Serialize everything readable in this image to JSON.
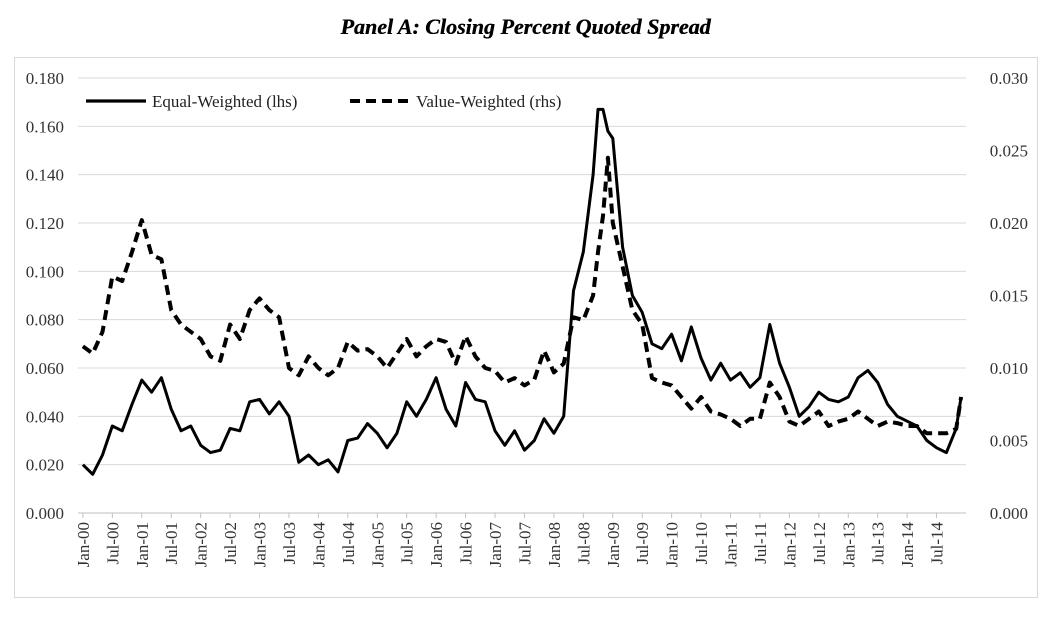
{
  "title": "Panel A: Closing Percent Quoted Spread",
  "chart_data": {
    "type": "line",
    "title": "Panel A: Closing Percent Quoted Spread",
    "xlabel": "",
    "ylabel_left": "",
    "ylabel_right": "",
    "x_tick_labels": [
      "Jan-00",
      "Jul-00",
      "Jan-01",
      "Jul-01",
      "Jan-02",
      "Jul-02",
      "Jan-03",
      "Jul-03",
      "Jan-04",
      "Jul-04",
      "Jan-05",
      "Jul-05",
      "Jan-06",
      "Jul-06",
      "Jan-07",
      "Jul-07",
      "Jan-08",
      "Jul-08",
      "Jan-09",
      "Jul-09",
      "Jan-10",
      "Jul-10",
      "Jan-11",
      "Jul-11",
      "Jan-12",
      "Jul-12",
      "Jan-13",
      "Jul-13",
      "Jan-14",
      "Jul-14"
    ],
    "y_left": {
      "ylim": [
        0,
        0.18
      ],
      "ticks": [
        "0.000",
        "0.020",
        "0.040",
        "0.060",
        "0.080",
        "0.100",
        "0.120",
        "0.140",
        "0.160",
        "0.180"
      ]
    },
    "y_right": {
      "ylim": [
        0,
        0.03
      ],
      "ticks": [
        "0.000",
        "0.005",
        "0.010",
        "0.015",
        "0.020",
        "0.025",
        "0.030"
      ]
    },
    "grid": "horizontal",
    "legend": "top-left",
    "series": [
      {
        "name": "Equal-Weighted (lhs)",
        "axis": "left",
        "style": "solid",
        "x": [
          "Jan-00",
          "Mar-00",
          "May-00",
          "Jul-00",
          "Sep-00",
          "Nov-00",
          "Jan-01",
          "Mar-01",
          "May-01",
          "Jul-01",
          "Sep-01",
          "Nov-01",
          "Jan-02",
          "Mar-02",
          "May-02",
          "Jul-02",
          "Sep-02",
          "Nov-02",
          "Jan-03",
          "Mar-03",
          "May-03",
          "Jul-03",
          "Sep-03",
          "Nov-03",
          "Jan-04",
          "Mar-04",
          "May-04",
          "Jul-04",
          "Sep-04",
          "Nov-04",
          "Jan-05",
          "Mar-05",
          "May-05",
          "Jul-05",
          "Sep-05",
          "Nov-05",
          "Jan-06",
          "Mar-06",
          "May-06",
          "Jul-06",
          "Sep-06",
          "Nov-06",
          "Jan-07",
          "Mar-07",
          "May-07",
          "Jul-07",
          "Sep-07",
          "Nov-07",
          "Jan-08",
          "Mar-08",
          "May-08",
          "Jul-08",
          "Sep-08",
          "Oct-08",
          "Nov-08",
          "Dec-08",
          "Jan-09",
          "Mar-09",
          "May-09",
          "Jul-09",
          "Sep-09",
          "Nov-09",
          "Jan-10",
          "Mar-10",
          "May-10",
          "Jul-10",
          "Sep-10",
          "Nov-10",
          "Jan-11",
          "Mar-11",
          "May-11",
          "Jul-11",
          "Sep-11",
          "Nov-11",
          "Jan-12",
          "Mar-12",
          "May-12",
          "Jul-12",
          "Sep-12",
          "Nov-12",
          "Jan-13",
          "Mar-13",
          "May-13",
          "Jul-13",
          "Sep-13",
          "Nov-13",
          "Jan-14",
          "Mar-14",
          "May-14",
          "Jul-14",
          "Sep-14",
          "Nov-14",
          "Dec-14"
        ],
        "values": [
          0.02,
          0.016,
          0.024,
          0.036,
          0.034,
          0.045,
          0.055,
          0.05,
          0.056,
          0.043,
          0.034,
          0.036,
          0.028,
          0.025,
          0.026,
          0.035,
          0.034,
          0.046,
          0.047,
          0.041,
          0.046,
          0.04,
          0.021,
          0.024,
          0.02,
          0.022,
          0.017,
          0.03,
          0.031,
          0.037,
          0.033,
          0.027,
          0.033,
          0.046,
          0.04,
          0.047,
          0.056,
          0.043,
          0.036,
          0.054,
          0.047,
          0.046,
          0.034,
          0.028,
          0.034,
          0.026,
          0.03,
          0.039,
          0.033,
          0.04,
          0.092,
          0.108,
          0.14,
          0.167,
          0.167,
          0.158,
          0.155,
          0.11,
          0.09,
          0.083,
          0.07,
          0.068,
          0.074,
          0.063,
          0.077,
          0.064,
          0.055,
          0.062,
          0.055,
          0.058,
          0.052,
          0.056,
          0.078,
          0.062,
          0.052,
          0.04,
          0.044,
          0.05,
          0.047,
          0.046,
          0.048,
          0.056,
          0.059,
          0.054,
          0.045,
          0.04,
          0.038,
          0.036,
          0.03,
          0.027,
          0.025,
          0.035,
          0.048
        ]
      },
      {
        "name": "Value-Weighted (rhs)",
        "axis": "right",
        "style": "dashed",
        "x": [
          "Jan-00",
          "Mar-00",
          "May-00",
          "Jul-00",
          "Sep-00",
          "Nov-00",
          "Jan-01",
          "Mar-01",
          "May-01",
          "Jul-01",
          "Sep-01",
          "Nov-01",
          "Jan-02",
          "Mar-02",
          "May-02",
          "Jul-02",
          "Sep-02",
          "Nov-02",
          "Jan-03",
          "Mar-03",
          "May-03",
          "Jul-03",
          "Sep-03",
          "Nov-03",
          "Jan-04",
          "Mar-04",
          "May-04",
          "Jul-04",
          "Sep-04",
          "Nov-04",
          "Jan-05",
          "Mar-05",
          "May-05",
          "Jul-05",
          "Sep-05",
          "Nov-05",
          "Jan-06",
          "Mar-06",
          "May-06",
          "Jul-06",
          "Sep-06",
          "Nov-06",
          "Jan-07",
          "Mar-07",
          "May-07",
          "Jul-07",
          "Sep-07",
          "Nov-07",
          "Jan-08",
          "Mar-08",
          "May-08",
          "Jul-08",
          "Sep-08",
          "Oct-08",
          "Nov-08",
          "Dec-08",
          "Jan-09",
          "Mar-09",
          "May-09",
          "Jul-09",
          "Sep-09",
          "Nov-09",
          "Jan-10",
          "Mar-10",
          "May-10",
          "Jul-10",
          "Sep-10",
          "Nov-10",
          "Jan-11",
          "Mar-11",
          "May-11",
          "Jul-11",
          "Sep-11",
          "Nov-11",
          "Jan-12",
          "Mar-12",
          "May-12",
          "Jul-12",
          "Sep-12",
          "Nov-12",
          "Jan-13",
          "Mar-13",
          "May-13",
          "Jul-13",
          "Sep-13",
          "Nov-13",
          "Jan-14",
          "Mar-14",
          "May-14",
          "Jul-14",
          "Sep-14",
          "Nov-14",
          "Dec-14"
        ],
        "values": [
          0.0115,
          0.011,
          0.0125,
          0.0163,
          0.016,
          0.018,
          0.0202,
          0.0178,
          0.0175,
          0.014,
          0.013,
          0.0125,
          0.012,
          0.0108,
          0.0105,
          0.013,
          0.012,
          0.014,
          0.0148,
          0.014,
          0.0135,
          0.01,
          0.0095,
          0.0108,
          0.01,
          0.0095,
          0.01,
          0.0118,
          0.0112,
          0.0113,
          0.0108,
          0.01,
          0.011,
          0.012,
          0.0108,
          0.0115,
          0.012,
          0.0118,
          0.0103,
          0.0122,
          0.0108,
          0.01,
          0.0098,
          0.009,
          0.0093,
          0.0088,
          0.0092,
          0.0112,
          0.0097,
          0.0103,
          0.0135,
          0.0133,
          0.015,
          0.018,
          0.0205,
          0.0245,
          0.02,
          0.017,
          0.014,
          0.013,
          0.0093,
          0.009,
          0.0088,
          0.008,
          0.0072,
          0.008,
          0.007,
          0.0068,
          0.0065,
          0.006,
          0.0065,
          0.0065,
          0.009,
          0.008,
          0.0063,
          0.006,
          0.0065,
          0.007,
          0.006,
          0.0063,
          0.0065,
          0.007,
          0.0065,
          0.006,
          0.0063,
          0.0062,
          0.006,
          0.006,
          0.0055,
          0.0055,
          0.0055,
          0.0058,
          0.008
        ]
      }
    ]
  }
}
